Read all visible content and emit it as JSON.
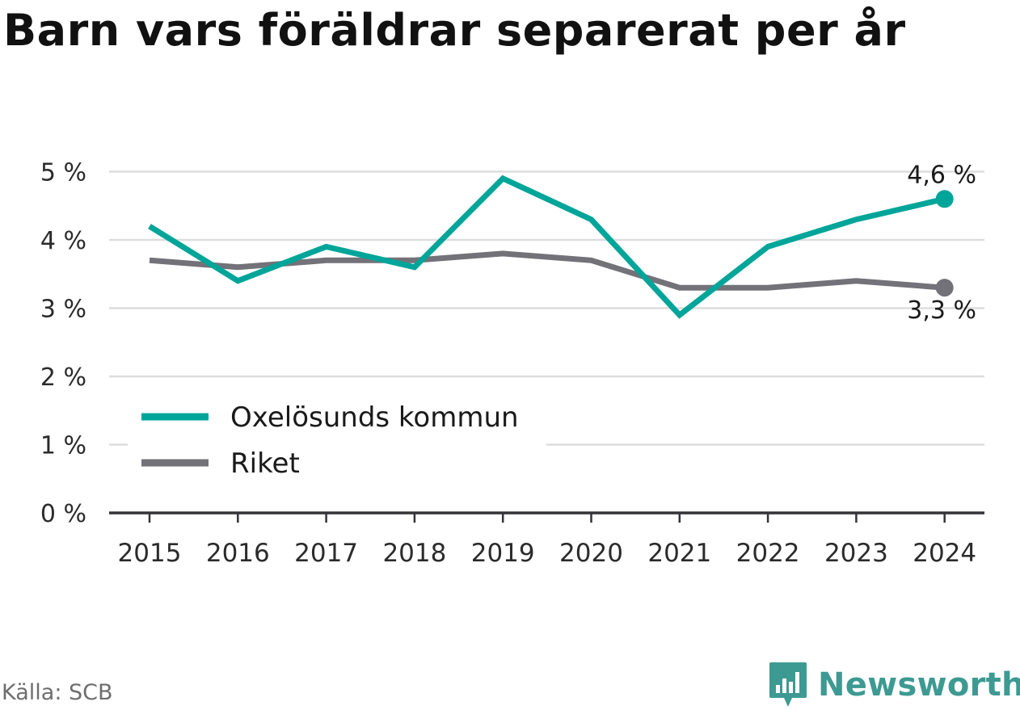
{
  "chart_data": {
    "type": "line",
    "title": "Barn vars föräldrar separerat per år",
    "x": [
      "2015",
      "2016",
      "2017",
      "2018",
      "2019",
      "2020",
      "2021",
      "2022",
      "2023",
      "2024"
    ],
    "yticks": [
      "0 %",
      "1 %",
      "2 %",
      "3 %",
      "4 %",
      "5 %"
    ],
    "ylim": [
      0,
      5
    ],
    "grid": true,
    "legend_position": "bottom-left",
    "series": [
      {
        "name": "Oxelösunds kommun",
        "color": "#00a599",
        "values": [
          4.2,
          3.4,
          3.9,
          3.6,
          4.9,
          4.3,
          2.9,
          3.9,
          4.3,
          4.6
        ],
        "end_label": "4,6 %"
      },
      {
        "name": "Riket",
        "color": "#737278",
        "values": [
          3.7,
          3.6,
          3.7,
          3.7,
          3.8,
          3.7,
          3.3,
          3.3,
          3.4,
          3.3
        ],
        "end_label": "3,3 %"
      }
    ]
  },
  "footer": {
    "source": "Källa: SCB",
    "brand": "Newsworthy",
    "brand_color": "#3d9a92",
    "brand_icon": "bar-chart-speech-bubble-icon"
  }
}
